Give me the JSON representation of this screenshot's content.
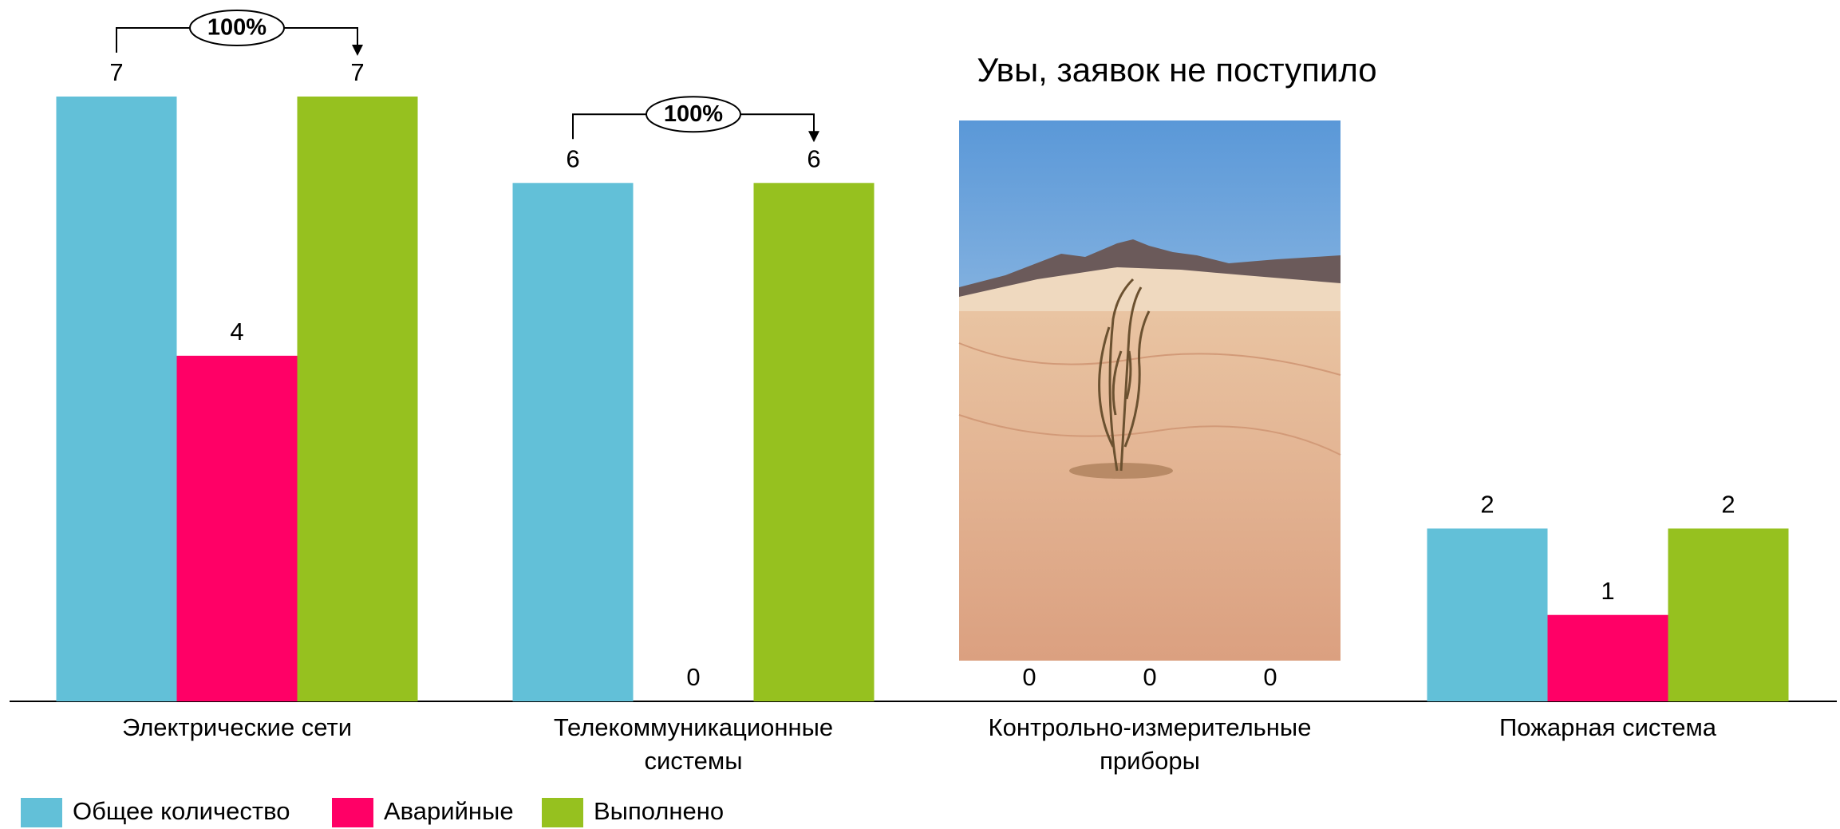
{
  "chart_data": {
    "type": "bar",
    "categories": [
      "Электрические сети",
      "Телекоммуникационные системы",
      "Контрольно-измерительные приборы",
      "Пожарная система"
    ],
    "series": [
      {
        "name": "Общее количество",
        "color": "#62c0d8",
        "values": [
          7,
          6,
          0,
          2
        ]
      },
      {
        "name": "Аварийные",
        "color": "#ff0066",
        "values": [
          4,
          0,
          0,
          1
        ]
      },
      {
        "name": "Выполнено",
        "color": "#96c11f",
        "values": [
          7,
          6,
          0,
          2
        ]
      }
    ],
    "annotations": [
      "100%",
      "100%"
    ],
    "message": "Увы, заявок не поступило",
    "message_color": "#8cc63f"
  }
}
